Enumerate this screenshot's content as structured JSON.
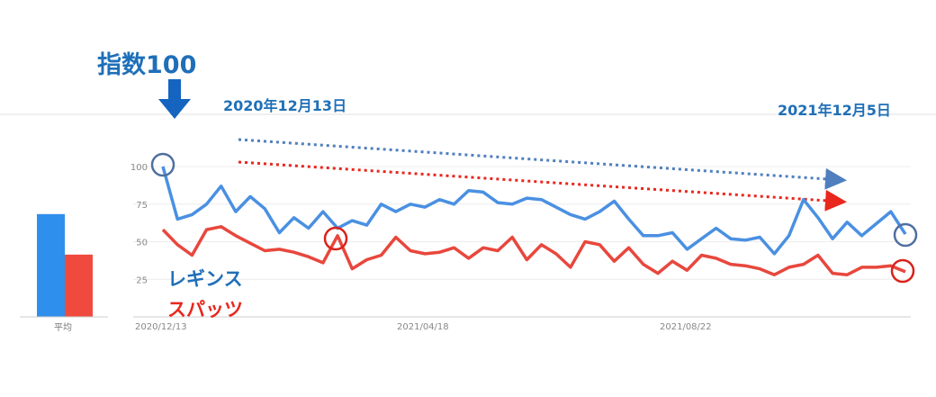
{
  "annotations": {
    "index_label": "指数100",
    "start_date": "2020年12月13日",
    "end_date": "2021年12月5日",
    "legend_blue": "レギンス",
    "legend_red": "スパッツ",
    "avg_label": "平均"
  },
  "colors": {
    "series_blue": "#4a90e2",
    "series_red": "#e8473d",
    "avg_blue": "#2f8fec",
    "avg_red": "#f04a3e",
    "annotation_blue": "#1f6fb8",
    "annotation_red": "#e8271d"
  },
  "chart_data": [
    {
      "type": "line",
      "title": "",
      "xlabel": "",
      "ylabel": "",
      "ylim": [
        0,
        100
      ],
      "yticks": [
        25,
        50,
        75,
        100
      ],
      "xtick_labels": [
        "2020/12/13",
        "2021/04/18",
        "2021/08/22"
      ],
      "grid": true,
      "series": [
        {
          "name": "レギンス",
          "values": [
            100,
            65,
            68,
            75,
            87,
            70,
            80,
            72,
            56,
            66,
            59,
            70,
            59,
            64,
            61,
            75,
            70,
            75,
            73,
            78,
            75,
            84,
            83,
            76,
            75,
            79,
            78,
            73,
            68,
            65,
            70,
            77,
            65,
            54,
            54,
            56,
            45,
            52,
            59,
            52,
            51,
            53,
            42,
            54,
            78,
            66,
            52,
            63,
            54,
            62,
            70,
            55
          ]
        },
        {
          "name": "スパッツ",
          "values": [
            58,
            48,
            41,
            58,
            60,
            54,
            49,
            44,
            45,
            43,
            40,
            36,
            54,
            32,
            38,
            41,
            53,
            44,
            42,
            43,
            46,
            39,
            46,
            44,
            53,
            38,
            48,
            42,
            33,
            50,
            48,
            37,
            46,
            35,
            29,
            37,
            31,
            41,
            39,
            35,
            34,
            32,
            28,
            33,
            35,
            41,
            29,
            28,
            33,
            33,
            34,
            30
          ]
        }
      ]
    },
    {
      "type": "bar",
      "categories": [
        "平均"
      ],
      "series": [
        {
          "name": "レギンス",
          "values": [
            66
          ]
        },
        {
          "name": "スパッツ",
          "values": [
            40
          ]
        }
      ],
      "ylim": [
        0,
        100
      ]
    }
  ]
}
